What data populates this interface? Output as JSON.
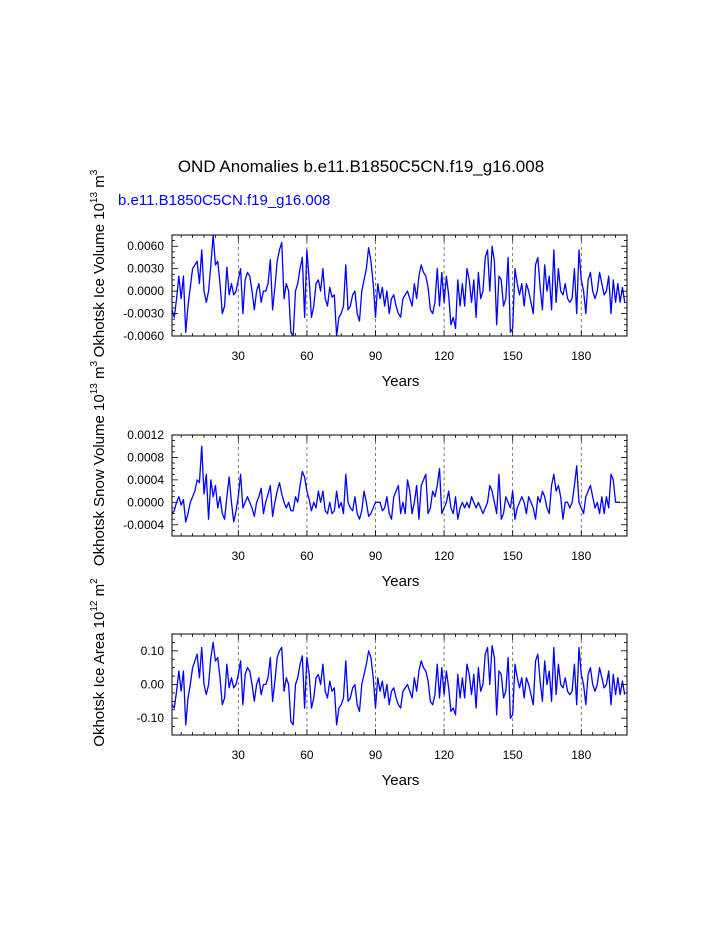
{
  "figure": {
    "title": "OND Anomalies b.e11.B1850C5CN.f19_g16.008",
    "subtitle": "b.e11.B1850C5CN.f19_g16.008",
    "subtitle_color": "#0000ff",
    "line_color": "#0000ff"
  },
  "chart_data": [
    {
      "type": "line",
      "name": "panel-ice-volume",
      "ylabel": "Okhotsk Ice Volume 10^13 m^3",
      "ylabel_main": "Okhotsk Ice Volume 10",
      "ylabel_exp": "13",
      "ylabel_unit": " m",
      "ylabel_unit_exp": "3",
      "xlabel": "Years",
      "xlim": [
        1,
        200
      ],
      "ylim": [
        -0.006,
        0.0075
      ],
      "xticks": [
        30,
        60,
        90,
        120,
        150,
        180
      ],
      "xtick_labels": [
        "30",
        "60",
        "90",
        "120",
        "150",
        "180"
      ],
      "yticks": [
        -0.006,
        -0.003,
        0.0,
        0.003,
        0.006
      ],
      "ytick_labels": [
        "-0.0060",
        "-0.0030",
        "0.0000",
        "0.0030",
        "0.0060"
      ],
      "grid": "vertical dashed at x ticks",
      "x_start": 1,
      "values": [
        -0.0025,
        -0.0035,
        -0.001,
        0.002,
        -0.001,
        0.002,
        -0.0055,
        -0.002,
        0.0005,
        0.003,
        0.0035,
        0.004,
        0.001,
        0.0055,
        0.0,
        -0.0015,
        0.0,
        0.0035,
        0.0075,
        0.0035,
        0.004,
        0.001,
        -0.003,
        -0.002,
        0.0032,
        -0.0005,
        0.001,
        -0.0005,
        0.0,
        0.0015,
        0.003,
        -0.003,
        0.0015,
        0.0025,
        0.002,
        0.0,
        -0.0025,
        0.0,
        0.001,
        -0.0015,
        0.0,
        0.0,
        0.001,
        0.0042,
        -0.0025,
        0.0005,
        0.004,
        0.0055,
        0.0065,
        -0.001,
        0.001,
        0.0,
        -0.0055,
        -0.006,
        0.0,
        0.001,
        0.003,
        0.0045,
        -0.0035,
        0.0055,
        0.0015,
        -0.0035,
        -0.002,
        0.001,
        0.0015,
        0.0,
        0.003,
        -0.001,
        -0.002,
        0.0005,
        -0.0008,
        -0.0005,
        -0.006,
        -0.0035,
        -0.003,
        -0.002,
        0.0035,
        -0.0025,
        -0.002,
        -0.0005,
        0.0,
        -0.003,
        -0.004,
        0.0,
        0.0015,
        0.003,
        0.0058,
        0.004,
        0.001,
        -0.0035,
        0.001,
        -0.001,
        0.0005,
        -0.002,
        0.0,
        -0.003,
        -0.001,
        -0.0005,
        -0.002,
        -0.003,
        -0.0035,
        -0.001,
        -0.0005,
        0.0,
        -0.001,
        -0.002,
        0.001,
        -0.001,
        0.002,
        0.0035,
        0.0025,
        0.002,
        0.0005,
        -0.0025,
        -0.003,
        -0.0015,
        0.003,
        -0.002,
        0.0025,
        -0.0015,
        0.002,
        -0.0005,
        -0.0045,
        -0.0035,
        -0.005,
        0.0015,
        -0.002,
        0.001,
        -0.002,
        0.003,
        0.0015,
        -0.0015,
        0.0015,
        -0.0035,
        0.0025,
        -0.001,
        0.0,
        0.0045,
        0.0055,
        0.0,
        0.006,
        0.004,
        -0.0045,
        0.002,
        0.0015,
        -0.002,
        -0.001,
        0.0045,
        -0.0055,
        -0.005,
        0.003,
        0.001,
        -0.0005,
        0.001,
        -0.002,
        0.001,
        0.0,
        -0.0015,
        -0.003,
        0.0035,
        0.0045,
        0.0005,
        -0.0025,
        0.0035,
        0.0,
        0.002,
        -0.0025,
        0.0055,
        -0.0015,
        0.003,
        0.0,
        -0.0005,
        0.001,
        -0.001,
        -0.0015,
        -0.001,
        0.003,
        -0.003,
        0.0055,
        0.0015,
        0.0,
        -0.003,
        0.0015,
        0.0025,
        0.0,
        -0.001,
        0.0,
        0.0025,
        0.001,
        -0.0005,
        0.0,
        0.002,
        -0.003,
        0.0015,
        -0.0015,
        0.001,
        -0.0015,
        0.0005,
        -0.0015
      ]
    },
    {
      "type": "line",
      "name": "panel-snow-volume",
      "ylabel": "Okhotsk Snow Volume 10^13 m^3",
      "ylabel_main": "Okhotsk Snow Volume 10",
      "ylabel_exp": "13",
      "ylabel_unit": " m",
      "ylabel_unit_exp": "3",
      "xlabel": "Years",
      "xlim": [
        1,
        200
      ],
      "ylim": [
        -0.0006,
        0.0012
      ],
      "xticks": [
        30,
        60,
        90,
        120,
        150,
        180
      ],
      "xtick_labels": [
        "30",
        "60",
        "90",
        "120",
        "150",
        "180"
      ],
      "yticks": [
        -0.0004,
        0.0,
        0.0004,
        0.0008,
        0.0012
      ],
      "ytick_labels": [
        "-0.0004",
        "0.0000",
        "0.0004",
        "0.0008",
        "0.0012"
      ],
      "grid": "vertical dashed at x ticks",
      "x_start": 1,
      "values": [
        -0.0002,
        -0.00015,
        0.0,
        0.0001,
        -5e-05,
        5e-05,
        -0.00035,
        -0.0002,
        0.0,
        0.0001,
        0.0002,
        0.0004,
        0.00035,
        0.001,
        0.00015,
        0.0005,
        -0.0003,
        0.0004,
        0.0001,
        0.0003,
        -0.0001,
        0.0001,
        -0.0002,
        -0.0003,
        0.0001,
        0.00045,
        0.0,
        -0.00035,
        -0.00015,
        0.0001,
        0.0005,
        -0.0001,
        0.0,
        0.0001,
        0.0,
        -0.0001,
        -0.00025,
        0.0,
        0.0001,
        0.00025,
        -0.0002,
        0.0,
        0.00015,
        0.0003,
        -0.00025,
        0.0,
        0.0002,
        0.00035,
        0.00015,
        0.0,
        -0.0001,
        0.0,
        -0.00015,
        -0.00015,
        0.0001,
        0.0,
        0.0003,
        0.00055,
        0.00045,
        0.0002,
        5e-05,
        -0.00015,
        0.0,
        -0.0001,
        0.0002,
        0.0,
        0.0002,
        -0.00015,
        -0.0002,
        0.0,
        -0.0002,
        -0.00015,
        0.0002,
        -0.0001,
        0.0,
        -0.0002,
        0.0005,
        0.0,
        -0.0001,
        -0.00015,
        0.0001,
        -0.0002,
        -0.0003,
        -0.00015,
        0.0002,
        0.0,
        -0.00025,
        -0.0002,
        -0.0001,
        0.0,
        0.0,
        0.0,
        -0.00015,
        -0.0001,
        0.0001,
        -0.0002,
        -0.0003,
        0.0001,
        0.0002,
        0.0003,
        -0.0002,
        0.0,
        -0.0002,
        0.0004,
        0.0002,
        -0.0002,
        0.0,
        0.0003,
        -0.0003,
        0.0003,
        0.0004,
        0.0005,
        -0.0002,
        -0.0001,
        0.0002,
        0.0001,
        0.0003,
        0.0006,
        -0.0002,
        -0.0001,
        0.0,
        0.0002,
        -0.0001,
        -0.0002,
        0.0001,
        -0.0003,
        -0.0001,
        0.0,
        -0.0001,
        0.0,
        -0.0001,
        0.0001,
        0.0,
        -0.0001,
        0.0,
        -0.0001,
        -0.0002,
        -0.0001,
        0.0,
        0.0003,
        0.0002,
        0.0,
        -0.0002,
        0.0005,
        -0.0003,
        -0.0002,
        0.0001,
        0.0,
        -0.0001,
        0.0002,
        -0.0003,
        -0.0001,
        0.0,
        0.0001,
        0.0,
        -0.0002,
        0.0001,
        0.0,
        -0.0001,
        -0.0003,
        0.0001,
        0.0,
        0.0002,
        0.0001,
        -0.0001,
        -0.0002,
        0.0003,
        0.0005,
        0.0002,
        0.0003,
        0.0001,
        -0.0003,
        0.0,
        0.0,
        -0.0001,
        0.0,
        0.0003,
        0.00065,
        0.0,
        -0.0001,
        -0.0002,
        0.0001,
        0.0002,
        0.0003,
        0.0001,
        -0.0001,
        0.0,
        -0.0002,
        0.0001,
        -0.0002,
        0.0001,
        -0.0001,
        0.0005,
        0.0004,
        0.0,
        0.0,
        0.0
      ]
    },
    {
      "type": "line",
      "name": "panel-ice-area",
      "ylabel": "Okhotsk Ice Area 10^12 m^2",
      "ylabel_main": "Okhotsk Ice Area 10",
      "ylabel_exp": "12",
      "ylabel_unit": " m",
      "ylabel_unit_exp": "2",
      "xlabel": "Years",
      "xlim": [
        1,
        200
      ],
      "ylim": [
        -0.15,
        0.15
      ],
      "xticks": [
        30,
        60,
        90,
        120,
        150,
        180
      ],
      "xtick_labels": [
        "30",
        "60",
        "90",
        "120",
        "150",
        "180"
      ],
      "yticks": [
        -0.1,
        0.0,
        0.1
      ],
      "ytick_labels": [
        "-0.10",
        "0.00",
        "0.10"
      ],
      "grid": "vertical dashed at x ticks",
      "x_start": 1,
      "values": [
        -0.06,
        -0.07,
        -0.02,
        0.04,
        -0.02,
        0.04,
        -0.12,
        -0.04,
        0.0,
        0.05,
        0.07,
        0.09,
        0.02,
        0.11,
        0.0,
        -0.03,
        0.0,
        0.08,
        0.125,
        0.07,
        0.08,
        0.02,
        -0.06,
        -0.04,
        0.06,
        -0.01,
        0.02,
        -0.01,
        0.0,
        0.03,
        0.07,
        -0.06,
        0.03,
        0.05,
        0.04,
        0.0,
        -0.05,
        0.0,
        0.02,
        -0.03,
        0.0,
        0.0,
        0.02,
        0.08,
        -0.05,
        0.01,
        0.08,
        0.1,
        0.11,
        -0.02,
        0.02,
        0.0,
        -0.11,
        -0.12,
        0.0,
        0.02,
        0.06,
        0.085,
        -0.07,
        0.08,
        0.03,
        -0.07,
        -0.04,
        0.02,
        0.03,
        0.0,
        0.06,
        -0.02,
        -0.04,
        0.01,
        -0.02,
        -0.01,
        -0.12,
        -0.07,
        -0.06,
        -0.04,
        0.07,
        -0.05,
        -0.04,
        -0.01,
        0.0,
        -0.06,
        -0.08,
        0.0,
        0.03,
        0.06,
        0.1,
        0.08,
        0.02,
        -0.07,
        0.02,
        -0.02,
        0.01,
        -0.04,
        0.0,
        -0.06,
        -0.02,
        -0.01,
        -0.04,
        -0.06,
        -0.07,
        -0.02,
        -0.01,
        0.0,
        -0.02,
        -0.04,
        0.02,
        -0.02,
        0.04,
        0.07,
        0.05,
        0.04,
        0.01,
        -0.05,
        -0.06,
        -0.03,
        0.06,
        -0.04,
        0.05,
        -0.03,
        0.04,
        -0.01,
        -0.08,
        -0.07,
        -0.09,
        0.03,
        -0.04,
        0.02,
        -0.04,
        0.06,
        0.03,
        -0.03,
        0.03,
        -0.07,
        0.05,
        -0.02,
        0.0,
        0.09,
        0.11,
        0.0,
        0.115,
        0.08,
        -0.09,
        0.04,
        0.03,
        -0.04,
        -0.02,
        0.08,
        -0.1,
        -0.09,
        0.06,
        0.02,
        -0.01,
        0.02,
        -0.04,
        0.02,
        0.0,
        -0.03,
        -0.06,
        0.07,
        0.09,
        0.01,
        -0.05,
        0.07,
        0.0,
        0.04,
        -0.05,
        0.11,
        -0.03,
        0.06,
        0.0,
        -0.01,
        0.02,
        -0.02,
        -0.03,
        -0.02,
        0.06,
        -0.06,
        0.11,
        0.03,
        0.0,
        -0.06,
        0.03,
        0.05,
        0.0,
        -0.02,
        0.0,
        0.05,
        0.02,
        -0.01,
        0.0,
        0.04,
        -0.06,
        0.03,
        -0.03,
        0.02,
        -0.03,
        0.01,
        -0.03
      ]
    }
  ]
}
